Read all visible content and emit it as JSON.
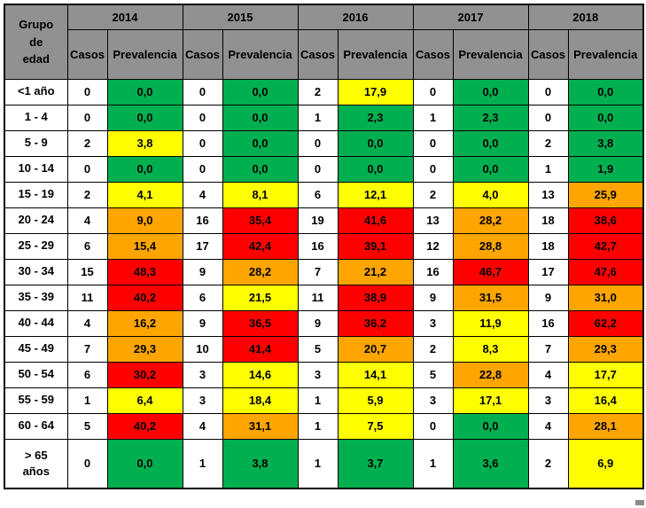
{
  "colors": {
    "header_bg": "#919191",
    "green": "#00B050",
    "yellow": "#FFFF00",
    "orange": "#FFA500",
    "red": "#FF0000",
    "casos_bg": "#FFFFFF",
    "border": "#000000"
  },
  "chart_data": {
    "type": "table",
    "corner_header": "Grupo\nde\nedad",
    "years": [
      "2014",
      "2015",
      "2016",
      "2017",
      "2018"
    ],
    "sub_headers": [
      "Casos",
      "Prevalencia"
    ],
    "rows": [
      {
        "age_group": "<1 año",
        "values": [
          {
            "casos": "0",
            "prevalencia": "0,0",
            "color": "green"
          },
          {
            "casos": "0",
            "prevalencia": "0,0",
            "color": "green"
          },
          {
            "casos": "2",
            "prevalencia": "17,9",
            "color": "yellow"
          },
          {
            "casos": "0",
            "prevalencia": "0,0",
            "color": "green"
          },
          {
            "casos": "0",
            "prevalencia": "0,0",
            "color": "green"
          }
        ]
      },
      {
        "age_group": "1 - 4",
        "values": [
          {
            "casos": "0",
            "prevalencia": "0,0",
            "color": "green"
          },
          {
            "casos": "0",
            "prevalencia": "0,0",
            "color": "green"
          },
          {
            "casos": "1",
            "prevalencia": "2,3",
            "color": "green"
          },
          {
            "casos": "1",
            "prevalencia": "2,3",
            "color": "green"
          },
          {
            "casos": "0",
            "prevalencia": "0,0",
            "color": "green"
          }
        ]
      },
      {
        "age_group": "5 - 9",
        "values": [
          {
            "casos": "2",
            "prevalencia": "3,8",
            "color": "yellow"
          },
          {
            "casos": "0",
            "prevalencia": "0,0",
            "color": "green"
          },
          {
            "casos": "0",
            "prevalencia": "0,0",
            "color": "green"
          },
          {
            "casos": "0",
            "prevalencia": "0,0",
            "color": "green"
          },
          {
            "casos": "2",
            "prevalencia": "3,8",
            "color": "green"
          }
        ]
      },
      {
        "age_group": "10 - 14",
        "values": [
          {
            "casos": "0",
            "prevalencia": "0,0",
            "color": "green"
          },
          {
            "casos": "0",
            "prevalencia": "0,0",
            "color": "green"
          },
          {
            "casos": "0",
            "prevalencia": "0,0",
            "color": "green"
          },
          {
            "casos": "0",
            "prevalencia": "0,0",
            "color": "green"
          },
          {
            "casos": "1",
            "prevalencia": "1,9",
            "color": "green"
          }
        ]
      },
      {
        "age_group": "15 - 19",
        "values": [
          {
            "casos": "2",
            "prevalencia": "4,1",
            "color": "yellow"
          },
          {
            "casos": "4",
            "prevalencia": "8,1",
            "color": "yellow"
          },
          {
            "casos": "6",
            "prevalencia": "12,1",
            "color": "yellow"
          },
          {
            "casos": "2",
            "prevalencia": "4,0",
            "color": "yellow"
          },
          {
            "casos": "13",
            "prevalencia": "25,9",
            "color": "orange"
          }
        ]
      },
      {
        "age_group": "20 - 24",
        "values": [
          {
            "casos": "4",
            "prevalencia": "9,0",
            "color": "orange"
          },
          {
            "casos": "16",
            "prevalencia": "35,4",
            "color": "red"
          },
          {
            "casos": "19",
            "prevalencia": "41,6",
            "color": "red"
          },
          {
            "casos": "13",
            "prevalencia": "28,2",
            "color": "orange"
          },
          {
            "casos": "18",
            "prevalencia": "38,6",
            "color": "red"
          }
        ]
      },
      {
        "age_group": "25 - 29",
        "values": [
          {
            "casos": "6",
            "prevalencia": "15,4",
            "color": "orange"
          },
          {
            "casos": "17",
            "prevalencia": "42,4",
            "color": "red"
          },
          {
            "casos": "16",
            "prevalencia": "39,1",
            "color": "red"
          },
          {
            "casos": "12",
            "prevalencia": "28,8",
            "color": "orange"
          },
          {
            "casos": "18",
            "prevalencia": "42,7",
            "color": "red"
          }
        ]
      },
      {
        "age_group": "30 - 34",
        "values": [
          {
            "casos": "15",
            "prevalencia": "48,3",
            "color": "red"
          },
          {
            "casos": "9",
            "prevalencia": "28,2",
            "color": "orange"
          },
          {
            "casos": "7",
            "prevalencia": "21,2",
            "color": "orange"
          },
          {
            "casos": "16",
            "prevalencia": "46,7",
            "color": "red"
          },
          {
            "casos": "17",
            "prevalencia": "47,6",
            "color": "red"
          }
        ]
      },
      {
        "age_group": "35 - 39",
        "values": [
          {
            "casos": "11",
            "prevalencia": "40,2",
            "color": "red"
          },
          {
            "casos": "6",
            "prevalencia": "21,5",
            "color": "yellow"
          },
          {
            "casos": "11",
            "prevalencia": "38,9",
            "color": "red"
          },
          {
            "casos": "9",
            "prevalencia": "31,5",
            "color": "orange"
          },
          {
            "casos": "9",
            "prevalencia": "31,0",
            "color": "orange"
          }
        ]
      },
      {
        "age_group": "40 - 44",
        "values": [
          {
            "casos": "4",
            "prevalencia": "16,2",
            "color": "orange"
          },
          {
            "casos": "9",
            "prevalencia": "36,5",
            "color": "red"
          },
          {
            "casos": "9",
            "prevalencia": "36,2",
            "color": "red"
          },
          {
            "casos": "3",
            "prevalencia": "11,9",
            "color": "yellow"
          },
          {
            "casos": "16",
            "prevalencia": "62,2",
            "color": "red"
          }
        ]
      },
      {
        "age_group": "45 - 49",
        "values": [
          {
            "casos": "7",
            "prevalencia": "29,3",
            "color": "orange"
          },
          {
            "casos": "10",
            "prevalencia": "41,4",
            "color": "red"
          },
          {
            "casos": "5",
            "prevalencia": "20,7",
            "color": "orange"
          },
          {
            "casos": "2",
            "prevalencia": "8,3",
            "color": "yellow"
          },
          {
            "casos": "7",
            "prevalencia": "29,3",
            "color": "orange"
          }
        ]
      },
      {
        "age_group": "50 - 54",
        "values": [
          {
            "casos": "6",
            "prevalencia": "30,2",
            "color": "red"
          },
          {
            "casos": "3",
            "prevalencia": "14,6",
            "color": "yellow"
          },
          {
            "casos": "3",
            "prevalencia": "14,1",
            "color": "yellow"
          },
          {
            "casos": "5",
            "prevalencia": "22,8",
            "color": "orange"
          },
          {
            "casos": "4",
            "prevalencia": "17,7",
            "color": "yellow"
          }
        ]
      },
      {
        "age_group": "55 - 59",
        "values": [
          {
            "casos": "1",
            "prevalencia": "6,4",
            "color": "yellow"
          },
          {
            "casos": "3",
            "prevalencia": "18,4",
            "color": "yellow"
          },
          {
            "casos": "1",
            "prevalencia": "5,9",
            "color": "yellow"
          },
          {
            "casos": "3",
            "prevalencia": "17,1",
            "color": "yellow"
          },
          {
            "casos": "3",
            "prevalencia": "16,4",
            "color": "yellow"
          }
        ]
      },
      {
        "age_group": "60 - 64",
        "values": [
          {
            "casos": "5",
            "prevalencia": "40,2",
            "color": "red"
          },
          {
            "casos": "4",
            "prevalencia": "31,1",
            "color": "orange"
          },
          {
            "casos": "1",
            "prevalencia": "7,5",
            "color": "yellow"
          },
          {
            "casos": "0",
            "prevalencia": "0,0",
            "color": "green"
          },
          {
            "casos": "4",
            "prevalencia": "28,1",
            "color": "orange"
          }
        ]
      },
      {
        "age_group": "> 65\naños",
        "values": [
          {
            "casos": "0",
            "prevalencia": "0,0",
            "color": "green"
          },
          {
            "casos": "1",
            "prevalencia": "3,8",
            "color": "green"
          },
          {
            "casos": "1",
            "prevalencia": "3,7",
            "color": "green"
          },
          {
            "casos": "1",
            "prevalencia": "3,6",
            "color": "green"
          },
          {
            "casos": "2",
            "prevalencia": "6,9",
            "color": "yellow"
          }
        ]
      }
    ]
  }
}
